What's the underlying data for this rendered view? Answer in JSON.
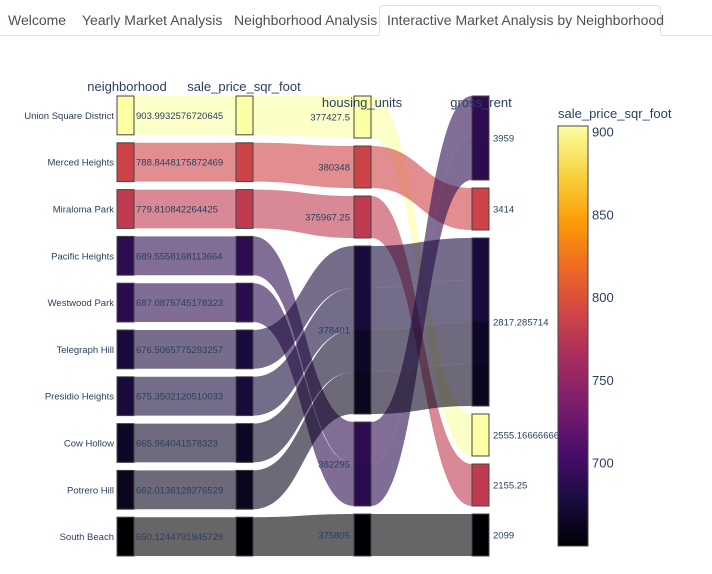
{
  "tabs": [
    {
      "label": "Welcome",
      "active": false
    },
    {
      "label": "Yearly Market Analysis",
      "active": false
    },
    {
      "label": "Neighborhood Analysis",
      "active": false
    },
    {
      "label": "Interactive Market Analysis by Neighborhood",
      "active": true
    }
  ],
  "chart_data": {
    "type": "parallel_categories",
    "dimensions": [
      "neighborhood",
      "sale_price_sqr_foot",
      "housing_units",
      "gross_rent"
    ],
    "records": [
      {
        "neighborhood": "Union Square District",
        "sale_price_sqr_foot": "903.9932576720645",
        "housing_units": "377427.5",
        "gross_rent": "2555.166666666665",
        "color_value": 903.99
      },
      {
        "neighborhood": "Merced Heights",
        "sale_price_sqr_foot": "788.8448175872469",
        "housing_units": "380348",
        "gross_rent": "3414",
        "color_value": 788.84
      },
      {
        "neighborhood": "Miraloma Park",
        "sale_price_sqr_foot": "779.810842264425",
        "housing_units": "375967.25",
        "gross_rent": "2155.25",
        "color_value": 779.81
      },
      {
        "neighborhood": "Pacific Heights",
        "sale_price_sqr_foot": "689.5558168113664",
        "housing_units": "382295",
        "gross_rent": "3959",
        "color_value": 689.56
      },
      {
        "neighborhood": "Westwood Park",
        "sale_price_sqr_foot": "687.0875745178323",
        "housing_units": "382295",
        "gross_rent": "3959",
        "color_value": 687.09
      },
      {
        "neighborhood": "Telegraph Hill",
        "sale_price_sqr_foot": "676.5065775293257",
        "housing_units": "378401",
        "gross_rent": "2817.285714285714",
        "color_value": 676.51
      },
      {
        "neighborhood": "Presidio Heights",
        "sale_price_sqr_foot": "675.3502120510033",
        "housing_units": "378401",
        "gross_rent": "2817.285714285714",
        "color_value": 675.35
      },
      {
        "neighborhood": "Cow Hollow",
        "sale_price_sqr_foot": "665.964041578323",
        "housing_units": "378401",
        "gross_rent": "2817.285714285714",
        "color_value": 665.96
      },
      {
        "neighborhood": "Potrero Hill",
        "sale_price_sqr_foot": "662.0136128276529",
        "housing_units": "378401",
        "gross_rent": "2817.285714285714",
        "color_value": 662.01
      },
      {
        "neighborhood": "South Beach",
        "sale_price_sqr_foot": "650.1244791945729",
        "housing_units": "375805",
        "gross_rent": "2099",
        "color_value": 650.12
      }
    ],
    "category_order": {
      "housing_units": [
        "377427.5",
        "380348",
        "375967.25",
        "378401",
        "382295",
        "375805"
      ],
      "gross_rent": [
        "3959",
        "3414",
        "2817.285714285714",
        "2555.166666666665",
        "2155.25",
        "2099"
      ]
    },
    "category_labels": {
      "neighborhood": [
        "Union Square District",
        "Merced Heights",
        "Miraloma Park",
        "Pacific Heights",
        "Westwood Park",
        "Telegraph Hill",
        "Presidio Heights",
        "Cow Hollow",
        "Potrero Hill",
        "South Beach"
      ],
      "sale_price_sqr_foot": [
        "903.9932576720645",
        "788.8448175872469",
        "779.810842264425",
        "689.5558168113664",
        "687.0875745178323",
        "676.5065775293257",
        "675.3502120510033",
        "665.964041578323",
        "662.0136128276529",
        "650.1244791945729"
      ],
      "housing_units": [
        "377427.5",
        "380348",
        "375967.25",
        "378401",
        "382295",
        "375805"
      ],
      "gross_rent": [
        "3959",
        "3414",
        "2817.285714",
        "2555.166666665",
        "2155.25",
        "2099"
      ]
    },
    "colorbar": {
      "title": "sale_price_sqr_foot",
      "range": [
        650.12,
        903.99
      ],
      "ticks": [
        700,
        750,
        800,
        850,
        900
      ],
      "colorscale": "inferno"
    }
  }
}
